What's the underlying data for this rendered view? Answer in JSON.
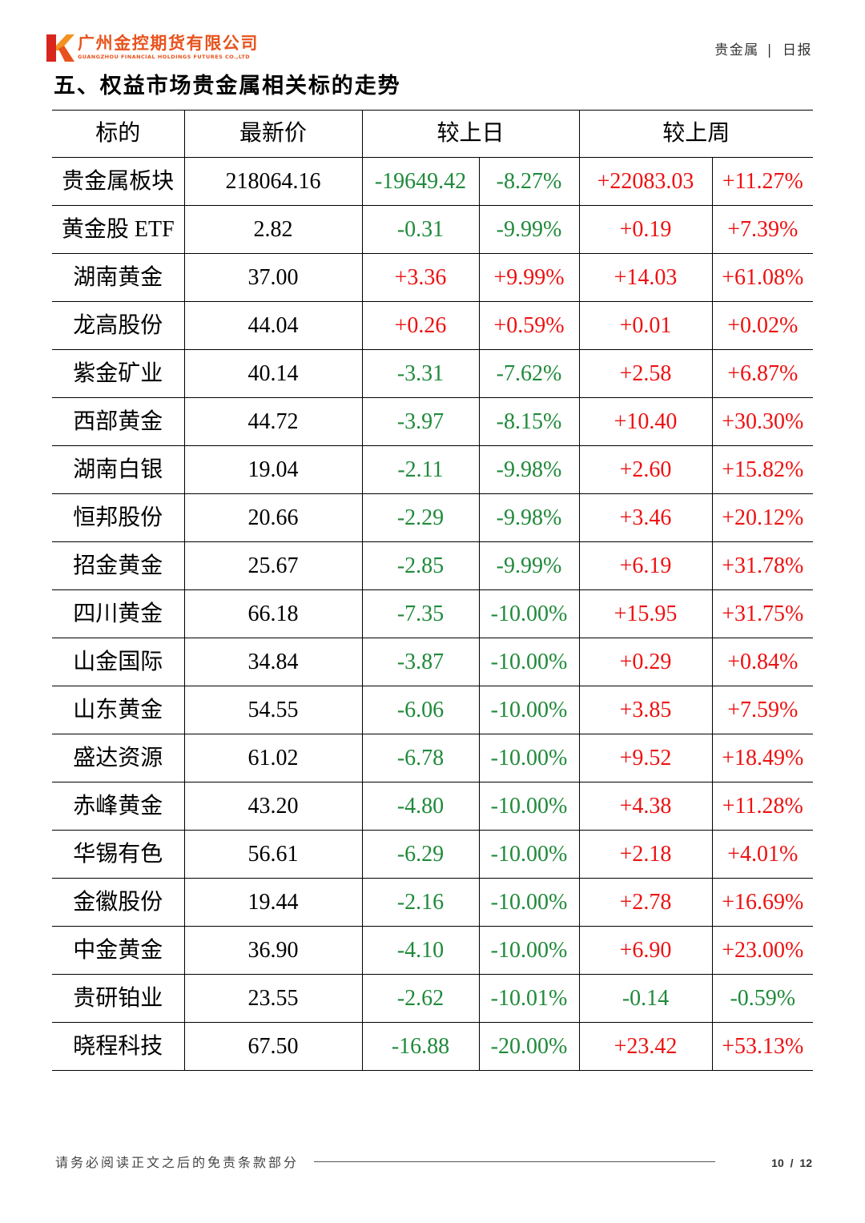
{
  "header": {
    "logo": {
      "mark": "K",
      "name_cn": "广州金控期货有限公司",
      "name_en": "GUANGZHOU FINANCIAL HOLDINGS FUTURES CO.,LTD"
    },
    "category": "贵金属",
    "separator": "|",
    "report_type": "日报"
  },
  "section_title": "五、权益市场贵金属相关标的走势",
  "table": {
    "headers": {
      "name": "标的",
      "price": "最新价",
      "day_change": "较上日",
      "week_change": "较上周"
    },
    "rows": [
      {
        "name": "贵金属板块",
        "price": "218064.16",
        "day_change": "-19649.42",
        "day_change_pct": "-8.27%",
        "week_change": "+22083.03",
        "week_change_pct": "+11.27%"
      },
      {
        "name": "黄金股 ETF",
        "price": "2.82",
        "day_change": "-0.31",
        "day_change_pct": "-9.99%",
        "week_change": "+0.19",
        "week_change_pct": "+7.39%"
      },
      {
        "name": "湖南黄金",
        "price": "37.00",
        "day_change": "+3.36",
        "day_change_pct": "+9.99%",
        "week_change": "+14.03",
        "week_change_pct": "+61.08%"
      },
      {
        "name": "龙高股份",
        "price": "44.04",
        "day_change": "+0.26",
        "day_change_pct": "+0.59%",
        "week_change": "+0.01",
        "week_change_pct": "+0.02%"
      },
      {
        "name": "紫金矿业",
        "price": "40.14",
        "day_change": "-3.31",
        "day_change_pct": "-7.62%",
        "week_change": "+2.58",
        "week_change_pct": "+6.87%"
      },
      {
        "name": "西部黄金",
        "price": "44.72",
        "day_change": "-3.97",
        "day_change_pct": "-8.15%",
        "week_change": "+10.40",
        "week_change_pct": "+30.30%"
      },
      {
        "name": "湖南白银",
        "price": "19.04",
        "day_change": "-2.11",
        "day_change_pct": "-9.98%",
        "week_change": "+2.60",
        "week_change_pct": "+15.82%"
      },
      {
        "name": "恒邦股份",
        "price": "20.66",
        "day_change": "-2.29",
        "day_change_pct": "-9.98%",
        "week_change": "+3.46",
        "week_change_pct": "+20.12%"
      },
      {
        "name": "招金黄金",
        "price": "25.67",
        "day_change": "-2.85",
        "day_change_pct": "-9.99%",
        "week_change": "+6.19",
        "week_change_pct": "+31.78%"
      },
      {
        "name": "四川黄金",
        "price": "66.18",
        "day_change": "-7.35",
        "day_change_pct": "-10.00%",
        "week_change": "+15.95",
        "week_change_pct": "+31.75%"
      },
      {
        "name": "山金国际",
        "price": "34.84",
        "day_change": "-3.87",
        "day_change_pct": "-10.00%",
        "week_change": "+0.29",
        "week_change_pct": "+0.84%"
      },
      {
        "name": "山东黄金",
        "price": "54.55",
        "day_change": "-6.06",
        "day_change_pct": "-10.00%",
        "week_change": "+3.85",
        "week_change_pct": "+7.59%"
      },
      {
        "name": "盛达资源",
        "price": "61.02",
        "day_change": "-6.78",
        "day_change_pct": "-10.00%",
        "week_change": "+9.52",
        "week_change_pct": "+18.49%"
      },
      {
        "name": "赤峰黄金",
        "price": "43.20",
        "day_change": "-4.80",
        "day_change_pct": "-10.00%",
        "week_change": "+4.38",
        "week_change_pct": "+11.28%"
      },
      {
        "name": "华锡有色",
        "price": "56.61",
        "day_change": "-6.29",
        "day_change_pct": "-10.00%",
        "week_change": "+2.18",
        "week_change_pct": "+4.01%"
      },
      {
        "name": "金徽股份",
        "price": "19.44",
        "day_change": "-2.16",
        "day_change_pct": "-10.00%",
        "week_change": "+2.78",
        "week_change_pct": "+16.69%"
      },
      {
        "name": "中金黄金",
        "price": "36.90",
        "day_change": "-4.10",
        "day_change_pct": "-10.00%",
        "week_change": "+6.90",
        "week_change_pct": "+23.00%"
      },
      {
        "name": "贵研铂业",
        "price": "23.55",
        "day_change": "-2.62",
        "day_change_pct": "-10.01%",
        "week_change": "-0.14",
        "week_change_pct": "-0.59%"
      },
      {
        "name": "晓程科技",
        "price": "67.50",
        "day_change": "-16.88",
        "day_change_pct": "-20.00%",
        "week_change": "+23.42",
        "week_change_pct": "+53.13%"
      }
    ]
  },
  "footer": {
    "disclaimer": "请务必阅读正文之后的免责条款部分",
    "page_label": "10 / 12"
  },
  "colors": {
    "up": "#ee1111",
    "down": "#1f8a3a",
    "neutral": "#000000",
    "brand_red": "#d9261c",
    "brand_orange": "#f39220",
    "brand_text": "#e8531d"
  }
}
